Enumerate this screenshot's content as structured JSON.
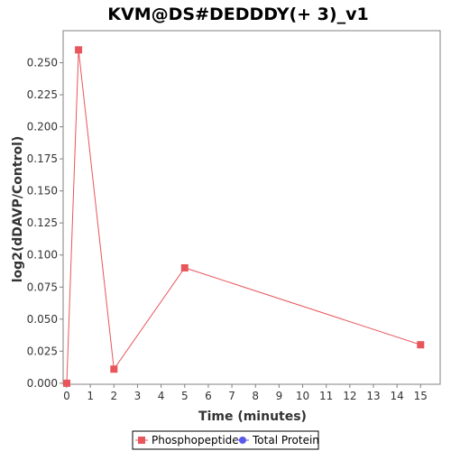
{
  "chart_data": {
    "type": "line",
    "title": "KVM@DS#DEDDDY(+ 3)_v1",
    "xlabel": "Time (minutes)",
    "ylabel": "log2(dDAVP/Control)",
    "xlim": [
      0,
      16
    ],
    "ylim": [
      0,
      0.275
    ],
    "x_ticks": [
      "0",
      "1",
      "2",
      "3",
      "4",
      "5",
      "6",
      "7",
      "8",
      "9",
      "10",
      "11",
      "12",
      "13",
      "14",
      "15"
    ],
    "y_ticks": [
      "0.000",
      "0.025",
      "0.050",
      "0.075",
      "0.100",
      "0.125",
      "0.150",
      "0.175",
      "0.200",
      "0.225",
      "0.250"
    ],
    "grid": false,
    "legend_position": "bottom",
    "series": [
      {
        "name": "Phosphopeptide",
        "color": "#e8555b",
        "marker": "square",
        "x": [
          0,
          0.5,
          2,
          5,
          15
        ],
        "y": [
          0.0,
          0.26,
          0.011,
          0.09,
          0.03
        ]
      },
      {
        "name": "Total Protein",
        "color": "#5a5ae8",
        "marker": "circle",
        "x": [],
        "y": []
      }
    ]
  }
}
